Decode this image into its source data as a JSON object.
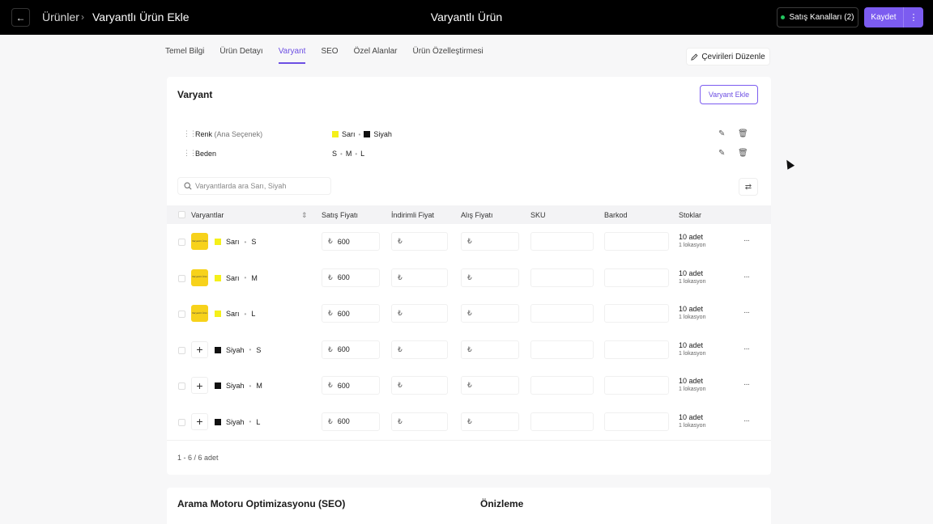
{
  "header": {
    "back_icon": "←",
    "breadcrumb_parent": "Ürünler",
    "breadcrumb_sep": "›",
    "breadcrumb_current": "Varyantlı Ürün Ekle",
    "title": "Varyantlı Ürün",
    "channels_label": "Satış Kanalları (2)",
    "save_label": "Kaydet",
    "more_icon": "⋮"
  },
  "tabs": [
    {
      "label": "Temel Bilgi"
    },
    {
      "label": "Ürün Detayı"
    },
    {
      "label": "Varyant",
      "active": true
    },
    {
      "label": "SEO"
    },
    {
      "label": "Özel Alanlar"
    },
    {
      "label": "Ürün Özelleştirmesi"
    }
  ],
  "translate_label": "Çevirileri Düzenle",
  "variant_card": {
    "title": "Varyant",
    "add_label": "Varyant Ekle",
    "options": [
      {
        "name": "Renk",
        "note": "(Ana Seçenek)",
        "values": [
          "Sarı",
          "Siyah"
        ]
      },
      {
        "name": "Beden",
        "note": "",
        "values": [
          "S",
          "M",
          "L"
        ]
      }
    ],
    "search_placeholder": "Varyantlarda ara Sarı, Siyah",
    "columns": [
      "Varyantlar",
      "Satış Fiyatı",
      "İndirimli Fiyat",
      "Alış Fiyatı",
      "SKU",
      "Barkod",
      "Stoklar"
    ],
    "currency": "₺",
    "thumb_text": "Varyantlı Ürün",
    "rows": [
      {
        "color": "Sarı",
        "size": "S",
        "price": "600",
        "stock": "10 adet",
        "loc": "1 lokasyon",
        "has_image": true
      },
      {
        "color": "Sarı",
        "size": "M",
        "price": "600",
        "stock": "10 adet",
        "loc": "1 lokasyon",
        "has_image": true
      },
      {
        "color": "Sarı",
        "size": "L",
        "price": "600",
        "stock": "10 adet",
        "loc": "1 lokasyon",
        "has_image": true
      },
      {
        "color": "Siyah",
        "size": "S",
        "price": "600",
        "stock": "10 adet",
        "loc": "1 lokasyon",
        "has_image": false
      },
      {
        "color": "Siyah",
        "size": "M",
        "price": "600",
        "stock": "10 adet",
        "loc": "1 lokasyon",
        "has_image": false
      },
      {
        "color": "Siyah",
        "size": "L",
        "price": "600",
        "stock": "10 adet",
        "loc": "1 lokasyon",
        "has_image": false
      }
    ],
    "pager": "1 - 6 / 6 adet"
  },
  "seo_card": {
    "title": "Arama Motoru Optimizasyonu (SEO)",
    "preview": "Önizleme"
  },
  "colors": {
    "accent": "#7c5cf0",
    "yellow": "#f5f01a",
    "black": "#111111",
    "thumb": "#f7d21b"
  },
  "icons": {
    "edit": "pencil-icon",
    "trash": "trash-icon",
    "search": "search-icon",
    "filter": "filter-icon",
    "grip": "grip-icon",
    "plus": "plus-icon",
    "more": "more-horizontal-icon"
  }
}
